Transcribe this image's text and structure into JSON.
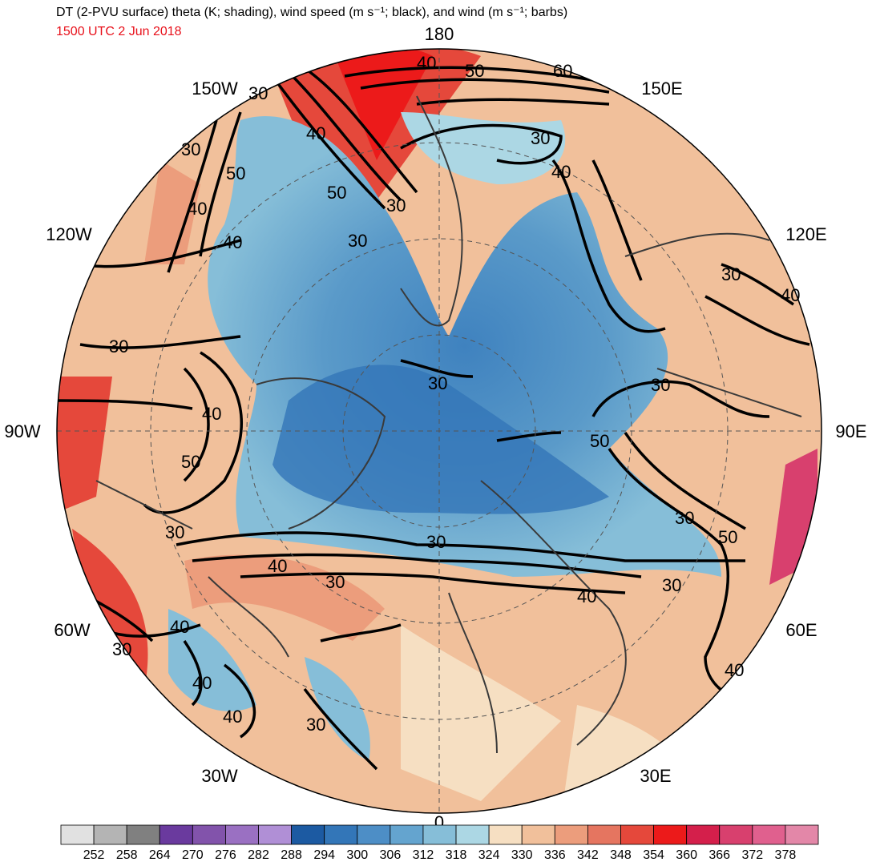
{
  "header": {
    "title": "DT (2-PVU surface) theta (K; shading), wind speed (m s⁻¹; black), and wind (m s⁻¹; barbs)",
    "valid_time": "1500 UTC 2 Jun 2018"
  },
  "projection": {
    "type": "north-polar-stereographic",
    "longitude_labels": [
      {
        "lon": 180,
        "text": "180"
      },
      {
        "lon": -150,
        "text": "150W"
      },
      {
        "lon": 150,
        "text": "150E"
      },
      {
        "lon": -120,
        "text": "120W"
      },
      {
        "lon": 120,
        "text": "120E"
      },
      {
        "lon": -90,
        "text": "90W"
      },
      {
        "lon": 90,
        "text": "90E"
      },
      {
        "lon": -60,
        "text": "60W"
      },
      {
        "lon": 60,
        "text": "60E"
      },
      {
        "lon": -30,
        "text": "30W"
      },
      {
        "lon": 30,
        "text": "30E"
      },
      {
        "lon": 0,
        "text": "0"
      }
    ]
  },
  "wind_speed_contours": {
    "levels_m_s": [
      30,
      40,
      50,
      60
    ],
    "labels_shown": [
      "30",
      "40",
      "50",
      "60"
    ]
  },
  "colorbar": {
    "variable": "theta",
    "units": "K",
    "tick_labels": [
      "252",
      "258",
      "264",
      "270",
      "276",
      "282",
      "288",
      "294",
      "300",
      "306",
      "312",
      "318",
      "324",
      "330",
      "336",
      "342",
      "348",
      "354",
      "360",
      "366",
      "372",
      "378"
    ],
    "colors": [
      "#e1e1e1",
      "#b4b4b4",
      "#808080",
      "#6a3a9e",
      "#8253ab",
      "#9a70c2",
      "#b08fd6",
      "#1c5aa2",
      "#3376b8",
      "#4d8ec6",
      "#64a4cf",
      "#86bed8",
      "#acd7e4",
      "#f6dfc2",
      "#f1c09b",
      "#ec9d7c",
      "#e57560",
      "#e5483b",
      "#ec1a1a",
      "#d41f4b",
      "#d8406e",
      "#e0608e",
      "#e387a8"
    ]
  },
  "chart_data": {
    "type": "heatmap",
    "title": "DT (2-PVU surface) theta (K; shading), wind speed (m s⁻¹; black), and wind (m s⁻¹; barbs)",
    "subtitle": "1500 UTC 2 Jun 2018",
    "legend": "bottom",
    "color_levels_K": [
      252,
      258,
      264,
      270,
      276,
      282,
      288,
      294,
      300,
      306,
      312,
      318,
      324,
      330,
      336,
      342,
      348,
      354,
      360,
      366,
      372,
      378
    ]
  }
}
